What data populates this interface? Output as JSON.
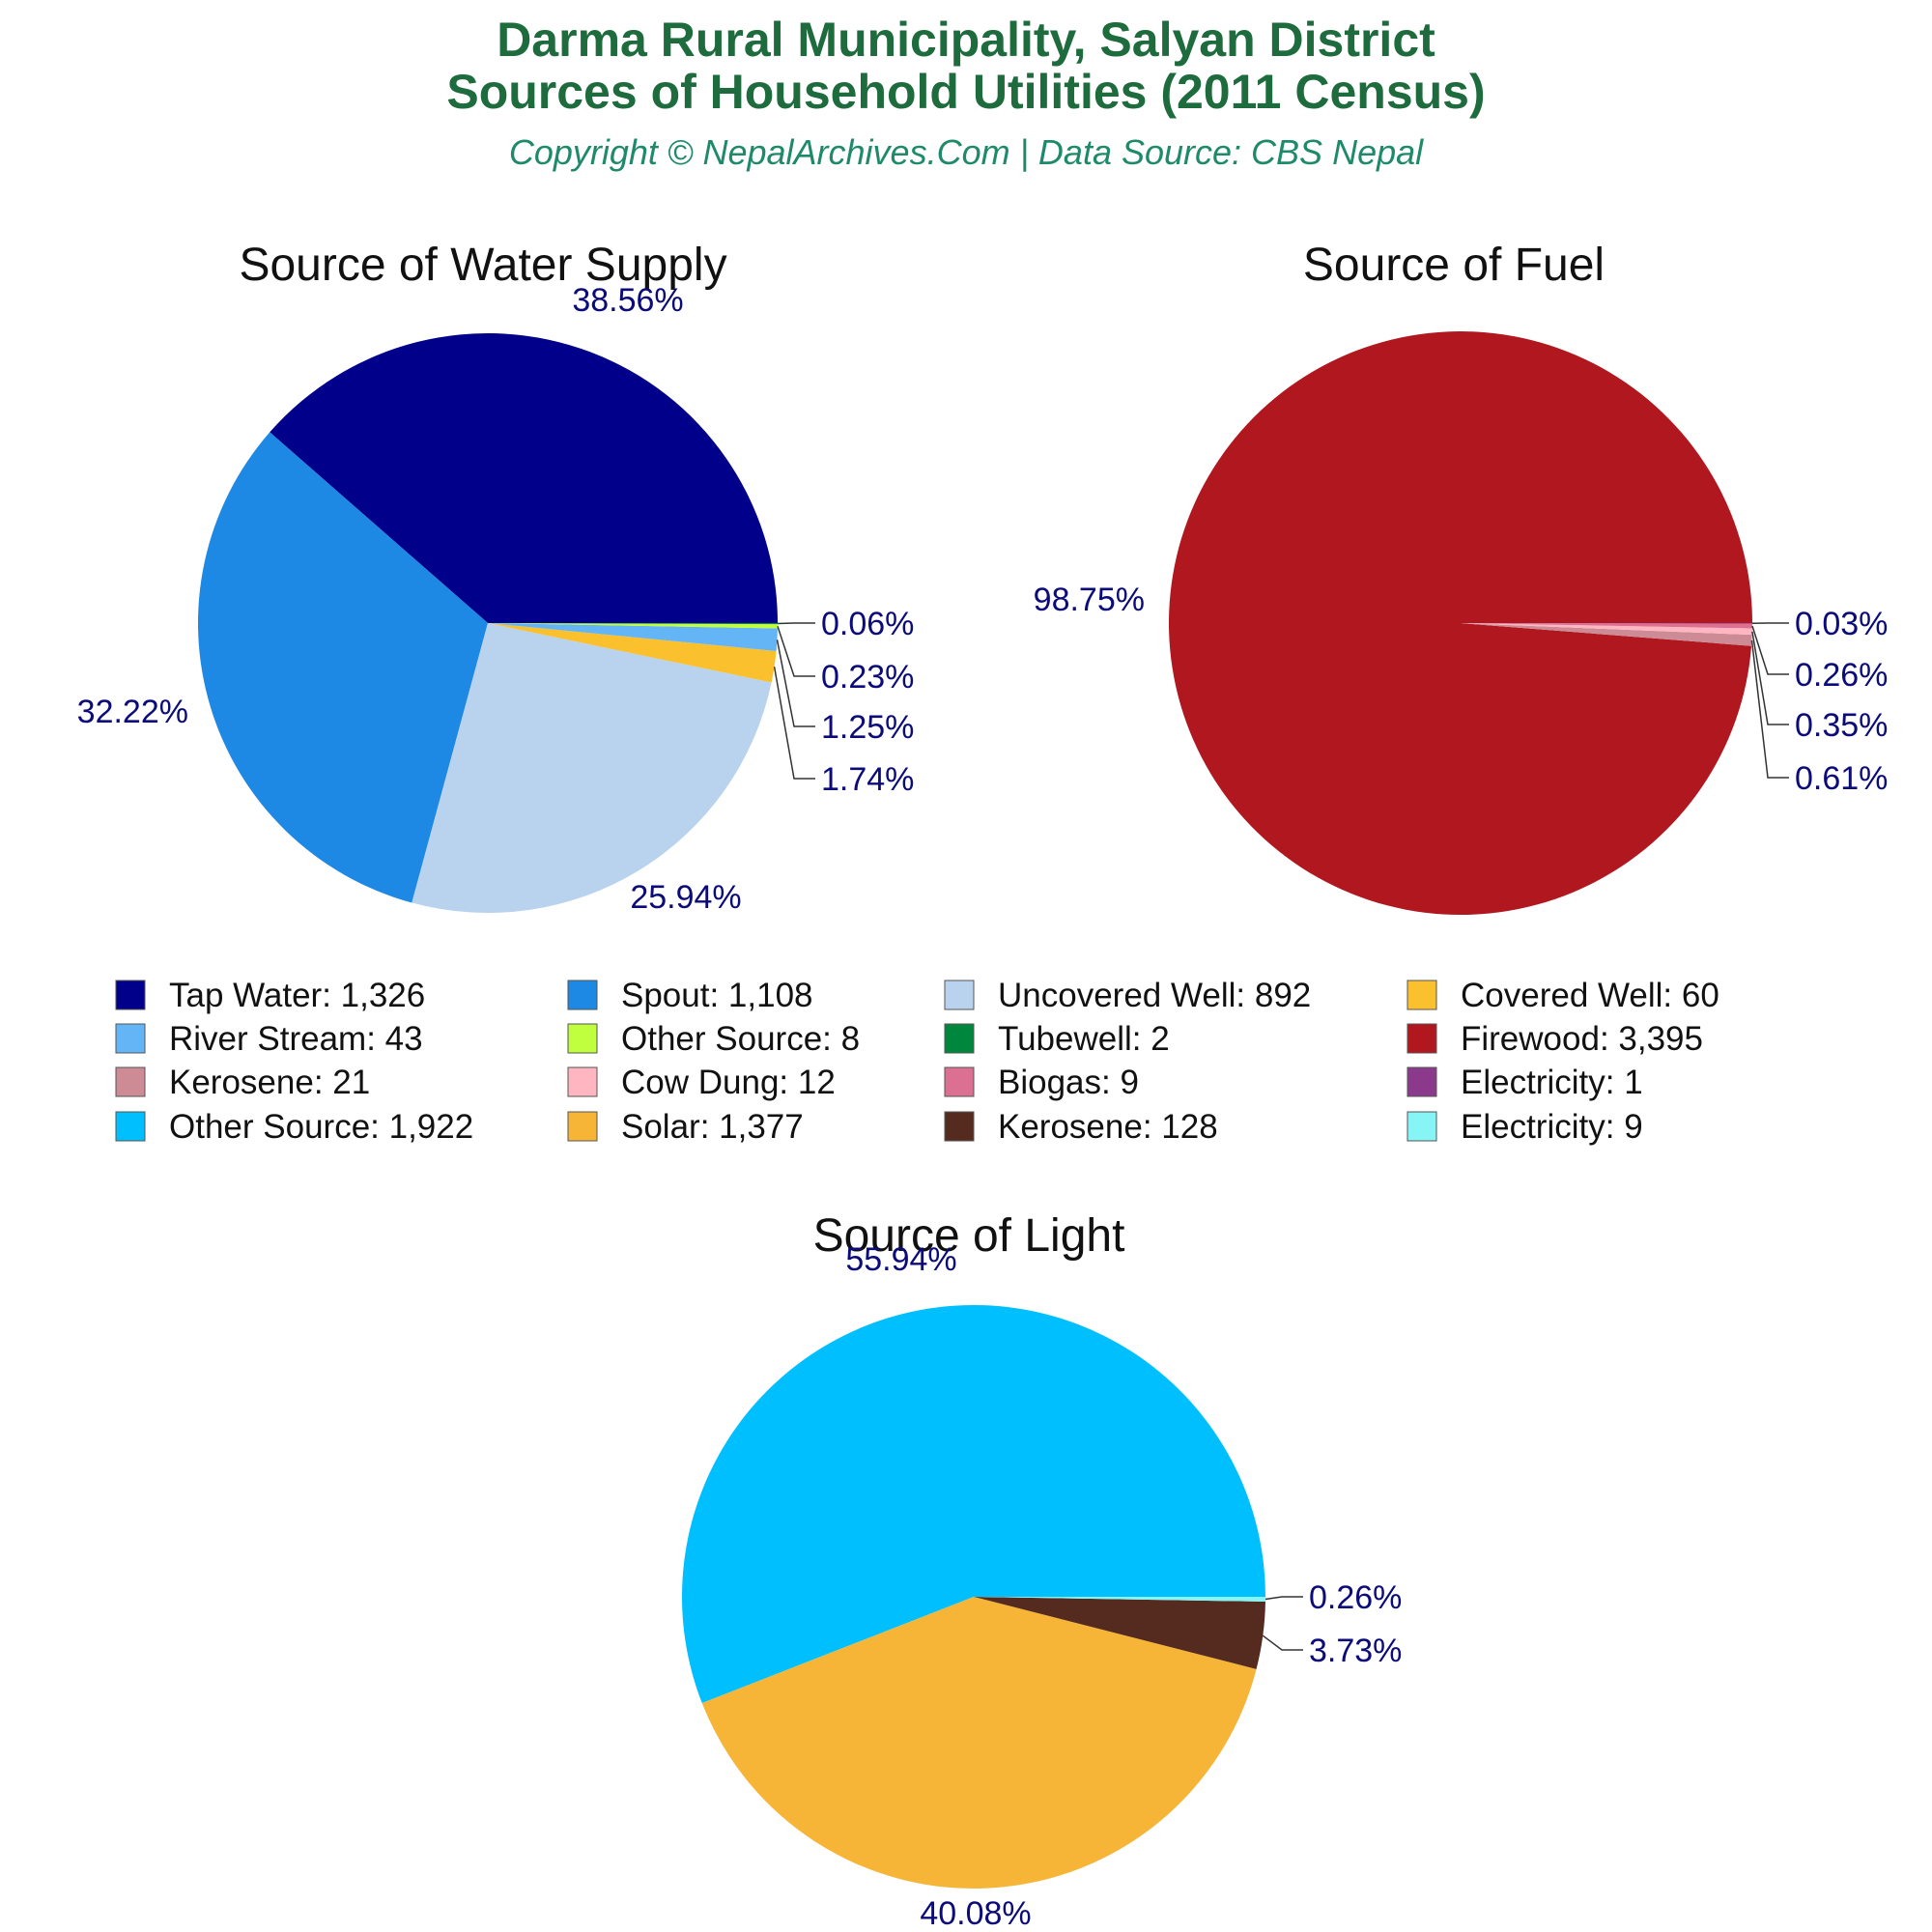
{
  "title_line1": "Darma Rural Municipality, Salyan District",
  "title_line2": "Sources of Household Utilities (2011 Census)",
  "subtitle": "Copyright © NepalArchives.Com | Data Source: CBS Nepal",
  "chart_data": [
    {
      "type": "pie",
      "title": "Source of Water Supply",
      "slices": [
        {
          "name": "Tap Water",
          "value": 1326,
          "display": "1,326",
          "percent_label": "38.56%",
          "color": "#00008b"
        },
        {
          "name": "Spout",
          "value": 1108,
          "display": "1,108",
          "percent_label": "32.22%",
          "color": "#1e88e5"
        },
        {
          "name": "Uncovered Well",
          "value": 892,
          "display": "892",
          "percent_label": "25.94%",
          "color": "#b9d3ee"
        },
        {
          "name": "Covered Well",
          "value": 60,
          "display": "60",
          "percent_label": "1.74%",
          "color": "#fbc02d"
        },
        {
          "name": "River Stream",
          "value": 43,
          "display": "43",
          "percent_label": "1.25%",
          "color": "#64b5f6"
        },
        {
          "name": "Other Source",
          "value": 8,
          "display": "8",
          "percent_label": "0.23%",
          "color": "#c0ff3e"
        },
        {
          "name": "Tubewell",
          "value": 2,
          "display": "2",
          "percent_label": "0.06%",
          "color": "#00873e"
        }
      ]
    },
    {
      "type": "pie",
      "title": "Source of Fuel",
      "slices": [
        {
          "name": "Firewood",
          "value": 3395,
          "display": "3,395",
          "percent_label": "98.75%",
          "color": "#b0171f"
        },
        {
          "name": "Kerosene",
          "value": 21,
          "display": "21",
          "percent_label": "0.61%",
          "color": "#cd8c95"
        },
        {
          "name": "Cow Dung",
          "value": 12,
          "display": "12",
          "percent_label": "0.35%",
          "color": "#ffb6c1"
        },
        {
          "name": "Biogas",
          "value": 9,
          "display": "9",
          "percent_label": "0.26%",
          "color": "#db7093"
        },
        {
          "name": "Electricity",
          "value": 1,
          "display": "1",
          "percent_label": "0.03%",
          "color": "#8b3a8b"
        }
      ]
    },
    {
      "type": "pie",
      "title": "Source of Light",
      "slices": [
        {
          "name": "Other Source",
          "value": 1922,
          "display": "1,922",
          "percent_label": "55.94%",
          "color": "#00bfff"
        },
        {
          "name": "Solar",
          "value": 1377,
          "display": "1,377",
          "percent_label": "40.08%",
          "color": "#f6b536"
        },
        {
          "name": "Kerosene",
          "value": 128,
          "display": "128",
          "percent_label": "3.73%",
          "color": "#552a1f"
        },
        {
          "name": "Electricity",
          "value": 9,
          "display": "9",
          "percent_label": "0.26%",
          "color": "#87f5f5"
        }
      ]
    }
  ],
  "legend": [
    {
      "label": "Tap Water: 1,326",
      "color": "#00008b"
    },
    {
      "label": "Spout: 1,108",
      "color": "#1e88e5"
    },
    {
      "label": "Uncovered Well: 892",
      "color": "#b9d3ee"
    },
    {
      "label": "Covered Well: 60",
      "color": "#fbc02d"
    },
    {
      "label": "River Stream: 43",
      "color": "#64b5f6"
    },
    {
      "label": "Other Source: 8",
      "color": "#c0ff3e"
    },
    {
      "label": "Tubewell: 2",
      "color": "#00873e"
    },
    {
      "label": "Firewood: 3,395",
      "color": "#b0171f"
    },
    {
      "label": "Kerosene: 21",
      "color": "#cd8c95"
    },
    {
      "label": "Cow Dung: 12",
      "color": "#ffb6c1"
    },
    {
      "label": "Biogas: 9",
      "color": "#db7093"
    },
    {
      "label": "Electricity: 1",
      "color": "#8b3a8b"
    },
    {
      "label": "Other Source: 1,922",
      "color": "#00bfff"
    },
    {
      "label": "Solar: 1,377",
      "color": "#f6b536"
    },
    {
      "label": "Kerosene: 128",
      "color": "#552a1f"
    },
    {
      "label": "Electricity: 9",
      "color": "#87f5f5"
    }
  ]
}
